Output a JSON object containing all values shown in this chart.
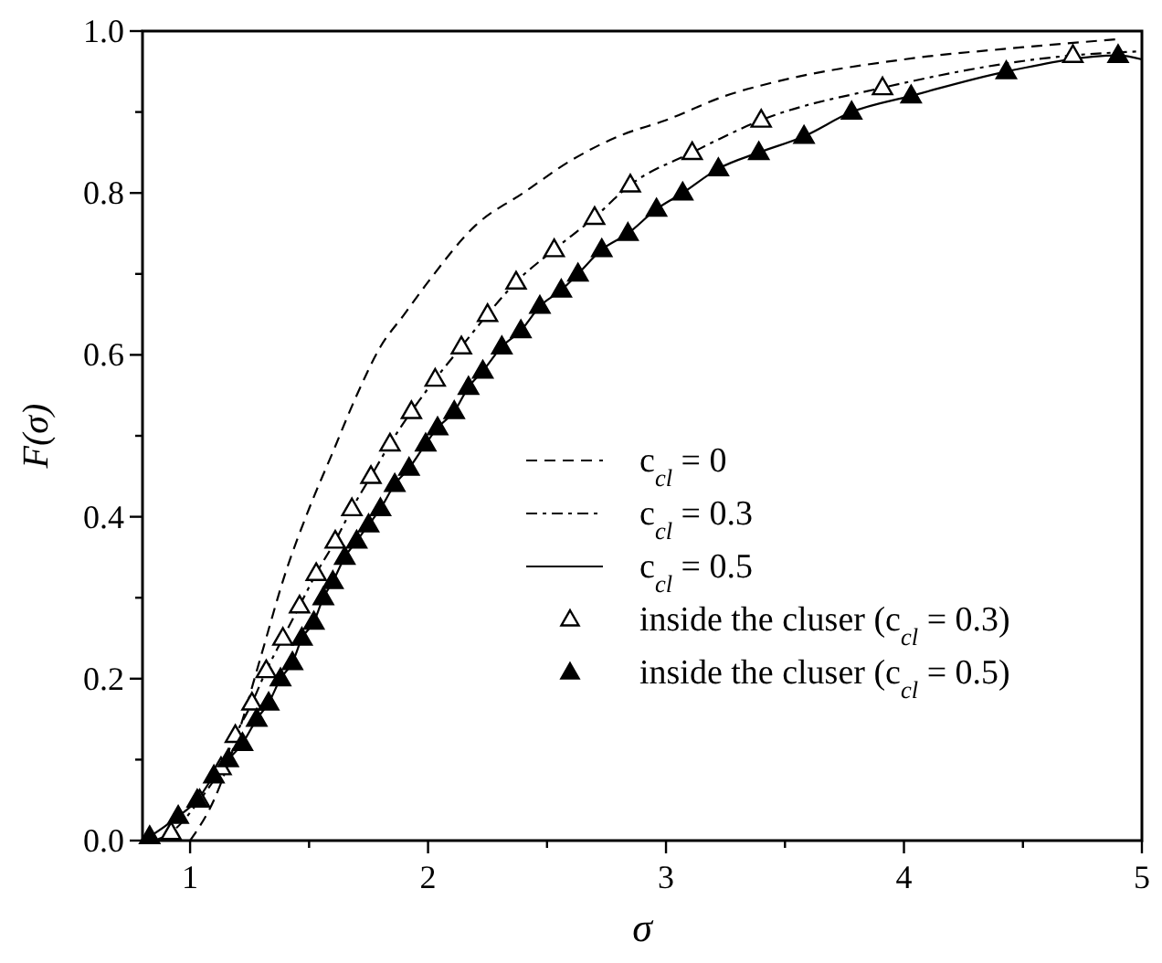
{
  "chart_data": {
    "type": "line",
    "xlabel": "σ",
    "ylabel": "F(σ)",
    "xlim": [
      0.8,
      5
    ],
    "ylim": [
      0,
      1
    ],
    "xticks": [
      1,
      {
        "value": 1.5,
        "label": null
      },
      2,
      {
        "value": 2.5,
        "label": null
      },
      3,
      {
        "value": 3.5,
        "label": null
      },
      4,
      {
        "value": 4.5,
        "label": null
      },
      5
    ],
    "yticks": [
      {
        "value": 0,
        "label": "0.0"
      },
      {
        "value": 0.1,
        "label": null
      },
      0.2,
      {
        "value": 0.3,
        "label": null
      },
      0.4,
      {
        "value": 0.5,
        "label": null
      },
      0.6,
      {
        "value": 0.7,
        "label": null
      },
      0.8,
      {
        "value": 0.9,
        "label": null
      },
      {
        "value": 1,
        "label": "1.0"
      }
    ],
    "grid": false,
    "legend": "right",
    "series": [
      {
        "name": "c$_{cl}$ = 0",
        "color": "#000000",
        "line_style": "dashed",
        "marker": "none",
        "x": [
          1.0,
          1.1,
          1.2,
          1.3,
          1.4,
          1.5,
          1.6,
          1.7,
          1.8,
          1.9,
          2.0,
          2.2,
          2.4,
          2.6,
          2.8,
          3.0,
          3.25,
          3.5,
          4.0,
          4.5,
          4.9
        ],
        "values": [
          0,
          0.05,
          0.13,
          0.23,
          0.33,
          0.41,
          0.48,
          0.55,
          0.61,
          0.65,
          0.69,
          0.76,
          0.8,
          0.84,
          0.87,
          0.89,
          0.92,
          0.94,
          0.965,
          0.98,
          0.99
        ]
      },
      {
        "name": "c$_{cl}$ = 0.3",
        "color": "#000000",
        "line_style": "dashdot",
        "marker": "none",
        "x": [
          0.85,
          0.92,
          1.04,
          1.13,
          1.19,
          1.26,
          1.32,
          1.39,
          1.46,
          1.53,
          1.61,
          1.68,
          1.76,
          1.84,
          1.93,
          2.03,
          2.14,
          2.25,
          2.37,
          2.53,
          2.7,
          2.85,
          3.11,
          3.4,
          3.91,
          4.71,
          5.0
        ],
        "values": [
          0,
          0.01,
          0.05,
          0.09,
          0.13,
          0.17,
          0.21,
          0.25,
          0.29,
          0.33,
          0.37,
          0.41,
          0.45,
          0.49,
          0.53,
          0.57,
          0.61,
          0.65,
          0.69,
          0.73,
          0.77,
          0.81,
          0.85,
          0.89,
          0.93,
          0.97,
          0.975
        ]
      },
      {
        "name": "c$_{cl}$ = 0.5",
        "color": "#000000",
        "line_style": "solid",
        "marker": "none",
        "x": [
          0.8,
          0.83,
          0.95,
          1.03,
          1.1,
          1.16,
          1.22,
          1.28,
          1.33,
          1.38,
          1.43,
          1.47,
          1.52,
          1.56,
          1.6,
          1.65,
          1.7,
          1.75,
          1.8,
          1.86,
          1.92,
          1.99,
          2.04,
          2.11,
          2.17,
          2.23,
          2.31,
          2.39,
          2.47,
          2.56,
          2.63,
          2.73,
          2.84,
          2.96,
          3.07,
          3.22,
          3.39,
          3.58,
          3.78,
          4.03,
          4.43,
          4.9,
          5.0
        ],
        "values": [
          0,
          0.005,
          0.03,
          0.05,
          0.08,
          0.1,
          0.12,
          0.15,
          0.17,
          0.2,
          0.22,
          0.25,
          0.27,
          0.3,
          0.32,
          0.35,
          0.37,
          0.39,
          0.41,
          0.44,
          0.46,
          0.49,
          0.51,
          0.53,
          0.56,
          0.58,
          0.61,
          0.63,
          0.66,
          0.68,
          0.7,
          0.73,
          0.75,
          0.78,
          0.8,
          0.83,
          0.85,
          0.87,
          0.9,
          0.92,
          0.95,
          0.97,
          0.965
        ]
      },
      {
        "name": "inside the cluser (c$_{cl}$ = 0.3)",
        "type": "scatter",
        "color": "#ffffff",
        "marker": "triangle",
        "x": [
          0.92,
          1.04,
          1.13,
          1.19,
          1.26,
          1.32,
          1.39,
          1.46,
          1.53,
          1.61,
          1.68,
          1.76,
          1.84,
          1.93,
          2.03,
          2.14,
          2.25,
          2.37,
          2.53,
          2.7,
          2.85,
          3.11,
          3.4,
          3.91,
          4.71
        ],
        "values": [
          0.01,
          0.05,
          0.09,
          0.13,
          0.17,
          0.21,
          0.25,
          0.29,
          0.33,
          0.37,
          0.41,
          0.45,
          0.49,
          0.53,
          0.57,
          0.61,
          0.65,
          0.69,
          0.73,
          0.77,
          0.81,
          0.85,
          0.89,
          0.93,
          0.97
        ]
      },
      {
        "name": "inside the cluser (c$_{cl}$ = 0.5)",
        "type": "scatter",
        "color": "#000000",
        "marker": "triangle",
        "x": [
          0.83,
          0.95,
          1.03,
          1.1,
          1.16,
          1.22,
          1.28,
          1.33,
          1.38,
          1.43,
          1.47,
          1.52,
          1.56,
          1.6,
          1.65,
          1.7,
          1.75,
          1.8,
          1.86,
          1.92,
          1.99,
          2.04,
          2.11,
          2.17,
          2.23,
          2.31,
          2.39,
          2.47,
          2.56,
          2.63,
          2.73,
          2.84,
          2.96,
          3.07,
          3.22,
          3.39,
          3.58,
          3.78,
          4.03,
          4.43,
          4.9
        ],
        "values": [
          0.005,
          0.03,
          0.05,
          0.08,
          0.1,
          0.12,
          0.15,
          0.17,
          0.2,
          0.22,
          0.25,
          0.27,
          0.3,
          0.32,
          0.35,
          0.37,
          0.39,
          0.41,
          0.44,
          0.46,
          0.49,
          0.51,
          0.53,
          0.56,
          0.58,
          0.61,
          0.63,
          0.66,
          0.68,
          0.7,
          0.73,
          0.75,
          0.78,
          0.8,
          0.83,
          0.85,
          0.87,
          0.9,
          0.92,
          0.95,
          0.97
        ]
      }
    ]
  }
}
